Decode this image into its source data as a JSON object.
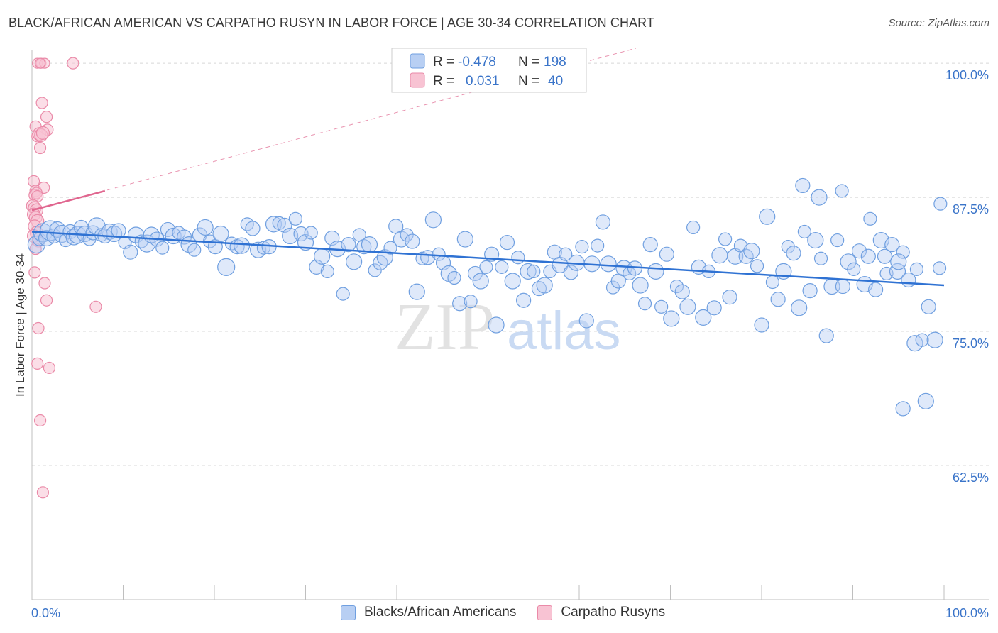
{
  "header": {
    "title": "BLACK/AFRICAN AMERICAN VS CARPATHO RUSYN IN LABOR FORCE | AGE 30-34 CORRELATION CHART",
    "source": "Source: ZipAtlas.com"
  },
  "colors": {
    "blue": "#6f9fe0",
    "blue_fill": "#b8cff3",
    "blue_line": "#2f72d3",
    "pink": "#ea8aa8",
    "pink_fill": "#f8c3d3",
    "pink_line": "#e0668f",
    "tick_label": "#3a74c9",
    "grid": "#d8d8d8"
  },
  "legend_top": {
    "rows": [
      {
        "r_label": "R =",
        "r_value": "-0.478",
        "n_label": "N =",
        "n_value": "198"
      },
      {
        "r_label": "R =",
        "r_value": "0.031",
        "n_label": "N =",
        "n_value": "40"
      }
    ]
  },
  "legend_bottom": {
    "items": [
      {
        "label": "Blacks/African Americans"
      },
      {
        "label": "Carpatho Rusyns"
      }
    ]
  },
  "watermark": {
    "zip": "ZIP",
    "atlas": "atlas"
  },
  "chart_data": {
    "type": "scatter",
    "title": "BLACK/AFRICAN AMERICAN VS CARPATHO RUSYN IN LABOR FORCE | AGE 30-34 CORRELATION CHART",
    "xlabel": "",
    "ylabel": "In Labor Force | Age 30-34",
    "xlim": [
      0,
      100
    ],
    "ylim": [
      50,
      101.5
    ],
    "x_tick_labels": [
      "0.0%",
      "100.0%"
    ],
    "y_ticks": [
      62.5,
      75.0,
      87.5,
      100.0
    ],
    "y_tick_labels": [
      "62.5%",
      "75.0%",
      "87.5%",
      "100.0%"
    ],
    "grid": true,
    "series": [
      {
        "name": "Blacks/African Americans",
        "R": -0.478,
        "N": 198,
        "trend": {
          "x": [
            0,
            100
          ],
          "y": [
            84.3,
            79.3
          ],
          "style": "solid"
        },
        "points": [
          [
            0.5,
            83.1
          ],
          [
            0.8,
            83.6
          ],
          [
            1.2,
            84.2
          ],
          [
            1.6,
            83.7
          ],
          [
            2.0,
            84.4
          ],
          [
            2.4,
            83.9
          ],
          [
            2.8,
            84.5
          ],
          [
            3.3,
            84.1
          ],
          [
            3.7,
            83.5
          ],
          [
            4.2,
            84.3
          ],
          [
            4.6,
            83.8
          ],
          [
            5.0,
            84.0
          ],
          [
            5.4,
            84.7
          ],
          [
            5.8,
            84.1
          ],
          [
            6.3,
            83.6
          ],
          [
            6.7,
            84.2
          ],
          [
            7.1,
            84.8
          ],
          [
            7.6,
            84.0
          ],
          [
            8.0,
            83.9
          ],
          [
            8.5,
            84.3
          ],
          [
            9.0,
            84.1
          ],
          [
            9.5,
            84.4
          ],
          [
            10.2,
            83.3
          ],
          [
            10.8,
            82.4
          ],
          [
            11.4,
            84.0
          ],
          [
            12.0,
            83.4
          ],
          [
            12.6,
            83.2
          ],
          [
            13.1,
            84.0
          ],
          [
            13.7,
            83.6
          ],
          [
            14.3,
            82.8
          ],
          [
            14.9,
            84.5
          ],
          [
            15.5,
            83.9
          ],
          [
            16.1,
            84.2
          ],
          [
            16.7,
            83.8
          ],
          [
            17.2,
            83.1
          ],
          [
            17.8,
            82.6
          ],
          [
            18.4,
            84.0
          ],
          [
            19.0,
            84.7
          ],
          [
            19.5,
            83.4
          ],
          [
            20.1,
            82.9
          ],
          [
            20.7,
            84.1
          ],
          [
            21.3,
            81.0
          ],
          [
            21.9,
            83.2
          ],
          [
            22.5,
            82.9
          ],
          [
            23.0,
            83.0
          ],
          [
            23.6,
            85.0
          ],
          [
            24.2,
            84.6
          ],
          [
            24.8,
            82.6
          ],
          [
            25.4,
            82.8
          ],
          [
            26.0,
            82.9
          ],
          [
            26.5,
            85.0
          ],
          [
            27.1,
            85.1
          ],
          [
            27.7,
            84.9
          ],
          [
            28.3,
            83.9
          ],
          [
            28.9,
            85.5
          ],
          [
            29.5,
            84.1
          ],
          [
            30.0,
            83.3
          ],
          [
            30.6,
            84.2
          ],
          [
            31.2,
            81.0
          ],
          [
            31.8,
            82.0
          ],
          [
            32.4,
            80.6
          ],
          [
            32.9,
            83.7
          ],
          [
            33.5,
            82.7
          ],
          [
            34.1,
            78.5
          ],
          [
            34.7,
            83.1
          ],
          [
            35.3,
            81.5
          ],
          [
            35.9,
            84.0
          ],
          [
            36.4,
            82.9
          ],
          [
            37.0,
            83.1
          ],
          [
            37.6,
            80.7
          ],
          [
            38.2,
            81.4
          ],
          [
            38.7,
            81.9
          ],
          [
            39.3,
            82.8
          ],
          [
            39.9,
            84.8
          ],
          [
            40.5,
            83.6
          ],
          [
            41.1,
            84.0
          ],
          [
            41.7,
            83.4
          ],
          [
            42.2,
            78.7
          ],
          [
            42.8,
            81.8
          ],
          [
            43.4,
            81.9
          ],
          [
            44.0,
            85.4
          ],
          [
            44.6,
            82.2
          ],
          [
            45.1,
            81.4
          ],
          [
            45.7,
            80.4
          ],
          [
            46.3,
            80.0
          ],
          [
            46.9,
            77.6
          ],
          [
            47.5,
            83.6
          ],
          [
            48.1,
            77.8
          ],
          [
            48.6,
            80.4
          ],
          [
            49.2,
            79.7
          ],
          [
            49.8,
            81.0
          ],
          [
            50.4,
            82.2
          ],
          [
            50.9,
            75.6
          ],
          [
            51.5,
            81.0
          ],
          [
            52.1,
            83.3
          ],
          [
            52.7,
            79.7
          ],
          [
            53.3,
            81.9
          ],
          [
            53.9,
            77.9
          ],
          [
            54.4,
            80.6
          ],
          [
            55.0,
            80.6
          ],
          [
            55.6,
            79.0
          ],
          [
            56.2,
            79.3
          ],
          [
            56.8,
            80.6
          ],
          [
            57.3,
            82.4
          ],
          [
            57.9,
            81.2
          ],
          [
            58.5,
            82.2
          ],
          [
            59.1,
            80.5
          ],
          [
            59.7,
            81.4
          ],
          [
            60.3,
            82.9
          ],
          [
            60.8,
            76.0
          ],
          [
            61.4,
            81.3
          ],
          [
            62.0,
            83.0
          ],
          [
            62.6,
            85.2
          ],
          [
            63.2,
            81.3
          ],
          [
            63.7,
            79.1
          ],
          [
            64.3,
            79.7
          ],
          [
            64.9,
            80.9
          ],
          [
            65.5,
            80.4
          ],
          [
            66.1,
            80.9
          ],
          [
            66.7,
            79.3
          ],
          [
            67.2,
            77.6
          ],
          [
            67.8,
            83.1
          ],
          [
            68.4,
            80.6
          ],
          [
            69.0,
            77.3
          ],
          [
            69.6,
            82.2
          ],
          [
            70.1,
            76.2
          ],
          [
            70.7,
            79.2
          ],
          [
            71.3,
            78.7
          ],
          [
            71.9,
            77.3
          ],
          [
            72.5,
            84.7
          ],
          [
            73.1,
            81.0
          ],
          [
            73.6,
            76.3
          ],
          [
            74.2,
            80.6
          ],
          [
            74.8,
            77.2
          ],
          [
            75.4,
            82.1
          ],
          [
            76.0,
            83.6
          ],
          [
            76.5,
            78.2
          ],
          [
            77.1,
            82.0
          ],
          [
            77.7,
            83.0
          ],
          [
            78.3,
            82.0
          ],
          [
            78.9,
            82.5
          ],
          [
            79.5,
            81.1
          ],
          [
            80.0,
            75.6
          ],
          [
            80.6,
            85.7
          ],
          [
            81.2,
            79.6
          ],
          [
            81.8,
            78.0
          ],
          [
            82.4,
            80.6
          ],
          [
            82.9,
            82.9
          ],
          [
            83.5,
            82.3
          ],
          [
            84.1,
            77.2
          ],
          [
            84.7,
            84.3
          ],
          [
            85.3,
            78.8
          ],
          [
            85.9,
            83.5
          ],
          [
            86.5,
            81.8
          ],
          [
            87.1,
            74.6
          ],
          [
            87.7,
            79.2
          ],
          [
            88.3,
            83.5
          ],
          [
            88.9,
            79.2
          ],
          [
            89.5,
            81.5
          ],
          [
            90.1,
            80.8
          ],
          [
            90.7,
            82.5
          ],
          [
            91.3,
            79.4
          ],
          [
            91.9,
            85.5
          ],
          [
            92.5,
            78.9
          ],
          [
            93.1,
            83.5
          ],
          [
            93.7,
            80.4
          ],
          [
            94.3,
            83.1
          ],
          [
            94.9,
            80.6
          ],
          [
            95.5,
            82.4
          ],
          [
            96.1,
            79.8
          ],
          [
            96.8,
            73.9
          ],
          [
            97.6,
            74.2
          ],
          [
            98.3,
            77.3
          ],
          [
            99.0,
            74.2
          ],
          [
            99.6,
            86.9
          ],
          [
            84.5,
            88.6
          ],
          [
            86.3,
            87.5
          ],
          [
            88.8,
            88.1
          ],
          [
            93.5,
            82.0
          ],
          [
            95.0,
            81.5
          ],
          [
            97.0,
            80.8
          ],
          [
            95.5,
            67.8
          ],
          [
            98.0,
            68.5
          ],
          [
            99.5,
            80.9
          ],
          [
            91.7,
            82.0
          ]
        ],
        "sizes": [
          24,
          18,
          26,
          22,
          28,
          20,
          22,
          24,
          18,
          20,
          22,
          24,
          20,
          22,
          18,
          20,
          24,
          18,
          20,
          22,
          22,
          20,
          18,
          20,
          22,
          18,
          24,
          22,
          20,
          18,
          20,
          22,
          18,
          20,
          22,
          18,
          20,
          22,
          18,
          20,
          22,
          24,
          18,
          20,
          22,
          18,
          20,
          22,
          18,
          20,
          22,
          18,
          20,
          22,
          18,
          20,
          22,
          18,
          20,
          22,
          18,
          20,
          22,
          18,
          20,
          22,
          18,
          20,
          22,
          18,
          20,
          22,
          18,
          20,
          22,
          18,
          20,
          22,
          18,
          20,
          22,
          18,
          20,
          22,
          18,
          20,
          22,
          18,
          20,
          22,
          18,
          20,
          22,
          18,
          20,
          22,
          18,
          20,
          22,
          18,
          20,
          22,
          18,
          20,
          22,
          18,
          20,
          22,
          18,
          20,
          22,
          18,
          20,
          22,
          18,
          20,
          22,
          18,
          20,
          22,
          18,
          20,
          22,
          18,
          20,
          22,
          18,
          20,
          22,
          18,
          20,
          22,
          18,
          20,
          22,
          18,
          20,
          22,
          18,
          20,
          22,
          18,
          20,
          22,
          18,
          20,
          22,
          18,
          20,
          22,
          18,
          20,
          22,
          18,
          20,
          22,
          18,
          20,
          22,
          18,
          20,
          22,
          18,
          20,
          22,
          18,
          20,
          22,
          18,
          20,
          22,
          18,
          20,
          22,
          18,
          20,
          22,
          18,
          20,
          22,
          18,
          20,
          22,
          18,
          20,
          22,
          18,
          20,
          22,
          18,
          20,
          22,
          18
        ]
      },
      {
        "name": "Carpatho Rusyns",
        "R": 0.031,
        "N": 40,
        "trend": {
          "x": [
            0,
            8
          ],
          "y": [
            86.3,
            88.1
          ],
          "style": "solid"
        },
        "trend_extended": {
          "x": [
            0,
            100
          ],
          "y": [
            86.3,
            108.5
          ],
          "style": "dashed"
        },
        "points": [
          [
            0.6,
            100.0
          ],
          [
            1.0,
            100.0
          ],
          [
            1.4,
            100.0
          ],
          [
            0.9,
            100.0
          ],
          [
            4.5,
            100.0
          ],
          [
            1.1,
            96.3
          ],
          [
            1.6,
            95.0
          ],
          [
            1.7,
            93.8
          ],
          [
            0.4,
            94.1
          ],
          [
            0.6,
            93.2
          ],
          [
            0.8,
            93.4
          ],
          [
            1.0,
            93.3
          ],
          [
            1.2,
            93.5
          ],
          [
            0.9,
            92.1
          ],
          [
            0.2,
            89.0
          ],
          [
            0.4,
            88.1
          ],
          [
            1.3,
            88.4
          ],
          [
            0.3,
            87.7
          ],
          [
            0.5,
            87.9
          ],
          [
            0.6,
            87.6
          ],
          [
            0.1,
            86.7
          ],
          [
            0.3,
            86.5
          ],
          [
            0.5,
            86.3
          ],
          [
            0.2,
            85.9
          ],
          [
            0.4,
            85.6
          ],
          [
            0.6,
            85.3
          ],
          [
            0.3,
            84.8
          ],
          [
            0.5,
            84.2
          ],
          [
            0.2,
            83.9
          ],
          [
            0.7,
            83.4
          ],
          [
            0.4,
            82.7
          ],
          [
            0.3,
            80.5
          ],
          [
            1.4,
            79.5
          ],
          [
            1.6,
            77.9
          ],
          [
            7.0,
            77.3
          ],
          [
            0.7,
            75.3
          ],
          [
            0.6,
            72.0
          ],
          [
            1.9,
            71.6
          ],
          [
            0.9,
            66.7
          ],
          [
            1.2,
            60.0
          ]
        ],
        "sizes": [
          14,
          14,
          14,
          14,
          16,
          16,
          16,
          16,
          16,
          16,
          18,
          18,
          18,
          16,
          16,
          16,
          16,
          16,
          16,
          16,
          18,
          18,
          18,
          18,
          18,
          18,
          18,
          18,
          18,
          16,
          16,
          16,
          16,
          16,
          16,
          16,
          16,
          16,
          16,
          16
        ]
      }
    ]
  }
}
